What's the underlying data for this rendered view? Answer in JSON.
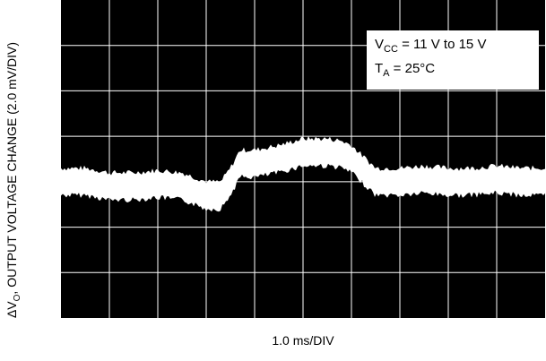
{
  "chart_data": {
    "type": "line",
    "title": "",
    "xlabel": "1.0 ms/DIV",
    "ylabel": "ΔVO, OUTPUT VOLTAGE CHANGE (2.0 mV/DIV)",
    "ylabel_parts": {
      "prefix": "ΔV",
      "sub": "O",
      "rest": ", OUTPUT VOLTAGE CHANGE (2.0 mV/DIV)"
    },
    "x_divisions": 10,
    "y_divisions": 7,
    "xlim": [
      0,
      10
    ],
    "ylim": [
      -3.5,
      3.5
    ],
    "x_unit": "ms",
    "y_unit": "mV",
    "grid": true,
    "background_color": "#000000",
    "trace_color": "#ffffff",
    "annotation": {
      "line1": {
        "main": "V",
        "sub": "CC",
        "rest": " = 11 V to 15 V"
      },
      "line2": {
        "main": "T",
        "sub": "A",
        "rest": " = 25°C"
      },
      "placement": "top-right"
    },
    "series": [
      {
        "x": [
          0,
          0.5,
          1.0,
          1.5,
          2.0,
          2.5,
          3.0,
          3.3,
          3.5,
          3.7,
          4.0,
          4.5,
          5.0,
          5.5,
          5.8,
          6.0,
          6.5,
          7.0,
          7.5,
          8.0,
          8.5,
          9.0,
          9.5,
          10.0
        ],
        "y": [
          -0.5,
          -0.5,
          -0.6,
          -0.6,
          -0.55,
          -0.6,
          -0.8,
          -0.8,
          -0.5,
          -0.1,
          -0.1,
          0.0,
          0.15,
          0.15,
          0.1,
          0.0,
          -0.5,
          -0.5,
          -0.45,
          -0.5,
          -0.5,
          -0.45,
          -0.5,
          -0.5
        ],
        "band_mv": 0.6
      }
    ]
  }
}
